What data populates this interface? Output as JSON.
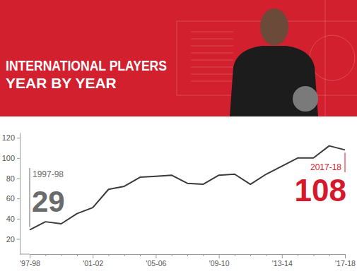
{
  "chart_data": {
    "type": "line",
    "title": "INTERNATIONAL PLAYERS YEAR BY YEAR",
    "categories": [
      "'97-98",
      null,
      null,
      null,
      "'01-02",
      null,
      null,
      null,
      "'05-06",
      null,
      null,
      null,
      "'09-10",
      null,
      null,
      null,
      "'13-14",
      null,
      null,
      null,
      "'17-18"
    ],
    "values": [
      29,
      37,
      35,
      45,
      51,
      69,
      72,
      81,
      82,
      83,
      75,
      74,
      83,
      84,
      74,
      84,
      92,
      100,
      100,
      112,
      108
    ],
    "color": "#3a3a3a",
    "ylim": [
      5,
      125
    ],
    "yticks": [
      20,
      40,
      60,
      80,
      100,
      120
    ],
    "grid": false,
    "annotations": [
      {
        "label": "1997-98",
        "value": 29
      },
      {
        "label": "2017-18",
        "value": 108
      }
    ]
  }
}
